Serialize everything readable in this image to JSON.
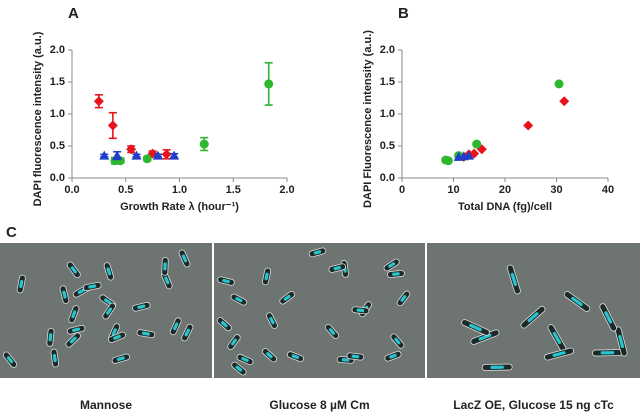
{
  "panel_labels": [
    "A",
    "B",
    "C"
  ],
  "chart_data": [
    {
      "type": "scatter",
      "xlabel": "Growth Rate λ (hour⁻¹)",
      "ylabel": "DAPI fluorescence intensity (a.u.)",
      "xlim": [
        0,
        2
      ],
      "xticks": [
        {
          "value": 0,
          "label": "0.0"
        },
        {
          "value": 0.5,
          "label": "0.5"
        },
        {
          "value": 1,
          "label": "1.0"
        },
        {
          "value": 1.5,
          "label": "1.5"
        },
        {
          "value": 2,
          "label": "2.0"
        }
      ],
      "ylim": [
        0,
        2
      ],
      "yticks": [
        {
          "value": 0,
          "label": "0.0"
        },
        {
          "value": 0.5,
          "label": "0.5"
        },
        {
          "value": 1,
          "label": "1.0"
        },
        {
          "value": 1.5,
          "label": "1.5"
        },
        {
          "value": 2,
          "label": "2.0"
        }
      ],
      "series": [
        {
          "color": "#e8141c",
          "marker": "diamond",
          "x": [
            0.25,
            0.38,
            0.55,
            0.75,
            0.88
          ],
          "values": [
            1.2,
            0.82,
            0.45,
            0.38,
            0.37
          ],
          "errors": [
            0.1,
            0.2,
            0.05,
            0.04,
            0.07
          ]
        },
        {
          "color": "#2db82d",
          "marker": "circle",
          "x": [
            0.4,
            0.45,
            0.7,
            1.23,
            1.83
          ],
          "values": [
            0.27,
            0.27,
            0.3,
            0.53,
            1.47
          ],
          "errors": [
            0.05,
            0.04,
            0.03,
            0.1,
            0.33
          ]
        },
        {
          "color": "#1f3fc8",
          "marker": "triangle",
          "x": [
            0.3,
            0.42,
            0.6,
            0.8,
            0.95
          ],
          "values": [
            0.35,
            0.35,
            0.35,
            0.35,
            0.35
          ],
          "errors": [
            0.02,
            0.06,
            0.02,
            0.02,
            0.03
          ]
        }
      ]
    },
    {
      "type": "scatter",
      "xlabel": "Total DNA (fg)/cell",
      "ylabel": "DAPI Fluorescence intensity (a.u.)",
      "xlim": [
        0,
        40
      ],
      "xticks": [
        0,
        10,
        20,
        30,
        40
      ],
      "ylim": [
        0,
        2
      ],
      "yticks": [
        {
          "value": 0,
          "label": "0.0"
        },
        {
          "value": 0.5,
          "label": "0.5"
        },
        {
          "value": 1,
          "label": "1.0"
        },
        {
          "value": 1.5,
          "label": "1.5"
        },
        {
          "value": 2,
          "label": "2.0"
        }
      ],
      "series": [
        {
          "color": "#e8141c",
          "marker": "diamond",
          "x": [
            12,
            13,
            14,
            15.5,
            24.5,
            31.5
          ],
          "values": [
            0.33,
            0.37,
            0.38,
            0.45,
            0.82,
            1.2
          ]
        },
        {
          "color": "#2db82d",
          "marker": "circle",
          "x": [
            8.5,
            9,
            11,
            14.5,
            30.5
          ],
          "values": [
            0.28,
            0.27,
            0.35,
            0.53,
            1.47
          ]
        },
        {
          "color": "#1f3fc8",
          "marker": "triangle",
          "x": [
            11,
            12,
            13
          ],
          "values": [
            0.33,
            0.34,
            0.35
          ]
        }
      ]
    }
  ],
  "images": [
    {
      "caption": "Mannose"
    },
    {
      "caption": "Glucose 8 µM Cm"
    },
    {
      "caption": "LacZ OE, Glucose 15 ng cTc"
    }
  ]
}
